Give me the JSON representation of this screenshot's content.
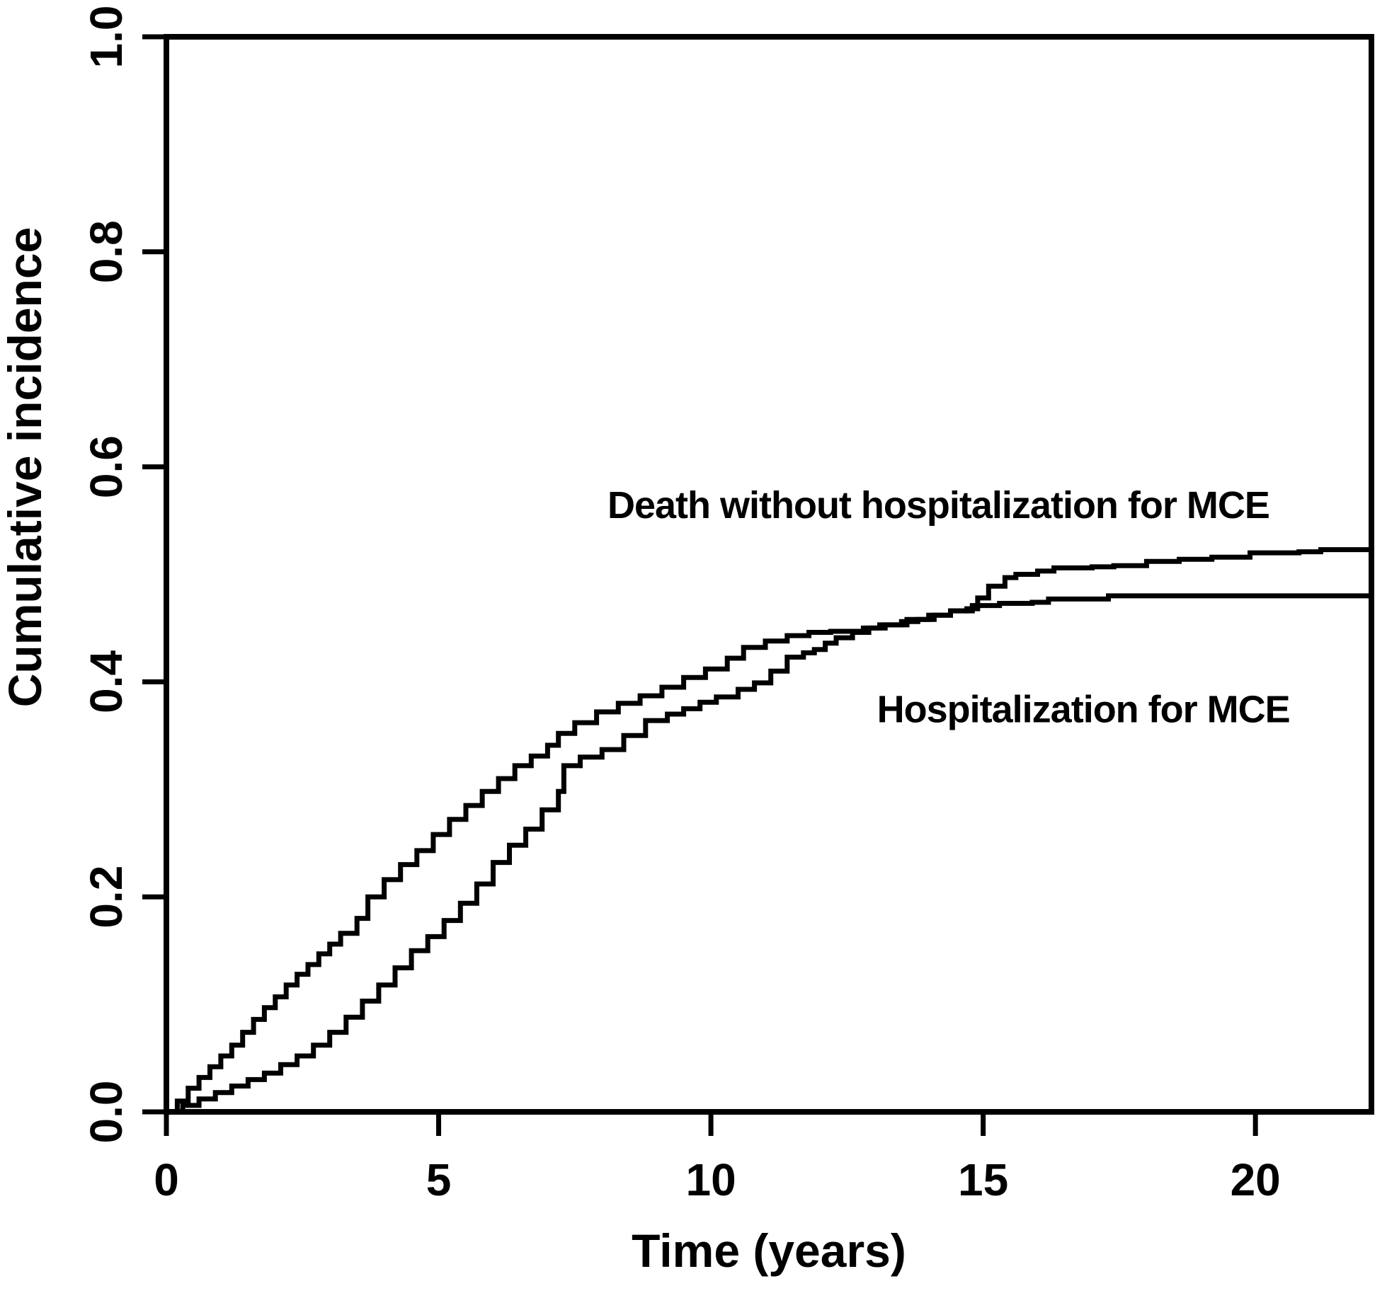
{
  "figure": {
    "background": "#ffffff",
    "ink_color": "#000000"
  },
  "chart_data": {
    "type": "line",
    "subtype": "cumulative-incidence-step-curves",
    "title": "",
    "xlabel": "Time (years)",
    "ylabel": "Cumulative incidence",
    "xlim": [
      0,
      22.13
    ],
    "ylim": [
      0,
      1.0
    ],
    "x_ticks": [
      0,
      5,
      10,
      15,
      20
    ],
    "x_tick_labels": [
      "0",
      "5",
      "10",
      "15",
      "20"
    ],
    "y_ticks": [
      0.0,
      0.2,
      0.4,
      0.6,
      0.8,
      1.0
    ],
    "y_tick_labels": [
      "0.0",
      "0.2",
      "0.4",
      "0.6",
      "0.8",
      "1.0"
    ],
    "grid": false,
    "frame": "full-box",
    "legend_position": "inline-annotations",
    "line_color": "#000000",
    "annotations": [
      {
        "name": "death-curve-label",
        "text": "Death without hospitalization for MCE",
        "x": 8.1,
        "y": 0.565
      },
      {
        "name": "hospitalization-curve-label",
        "text": "Hospitalization for MCE",
        "x": 13.05,
        "y": 0.375
      }
    ],
    "series": [
      {
        "name": "Death without hospitalization for MCE",
        "points": [
          [
            0,
            0
          ],
          [
            0.3,
            0.006
          ],
          [
            0.6,
            0.012
          ],
          [
            0.9,
            0.018
          ],
          [
            1.2,
            0.024
          ],
          [
            1.5,
            0.03
          ],
          [
            1.8,
            0.036
          ],
          [
            2.1,
            0.044
          ],
          [
            2.4,
            0.052
          ],
          [
            2.7,
            0.062
          ],
          [
            3.0,
            0.074
          ],
          [
            3.3,
            0.088
          ],
          [
            3.6,
            0.103
          ],
          [
            3.9,
            0.118
          ],
          [
            4.2,
            0.134
          ],
          [
            4.5,
            0.15
          ],
          [
            4.8,
            0.163
          ],
          [
            5.1,
            0.178
          ],
          [
            5.4,
            0.194
          ],
          [
            5.7,
            0.212
          ],
          [
            6.0,
            0.232
          ],
          [
            6.3,
            0.248
          ],
          [
            6.6,
            0.263
          ],
          [
            6.9,
            0.281
          ],
          [
            7.2,
            0.298
          ],
          [
            7.3,
            0.322
          ],
          [
            7.6,
            0.33
          ],
          [
            8.0,
            0.337
          ],
          [
            8.4,
            0.35
          ],
          [
            8.8,
            0.364
          ],
          [
            9.2,
            0.37
          ],
          [
            9.5,
            0.375
          ],
          [
            9.8,
            0.381
          ],
          [
            10.1,
            0.386
          ],
          [
            10.5,
            0.393
          ],
          [
            10.8,
            0.399
          ],
          [
            11.1,
            0.41
          ],
          [
            11.4,
            0.423
          ],
          [
            11.7,
            0.427
          ],
          [
            11.9,
            0.43
          ],
          [
            12.1,
            0.436
          ],
          [
            12.3,
            0.441
          ],
          [
            12.6,
            0.446
          ],
          [
            12.9,
            0.45
          ],
          [
            13.1,
            0.453
          ],
          [
            13.5,
            0.456
          ],
          [
            13.8,
            0.458
          ],
          [
            14.1,
            0.462
          ],
          [
            14.4,
            0.466
          ],
          [
            14.7,
            0.468
          ],
          [
            14.9,
            0.478
          ],
          [
            15.1,
            0.489
          ],
          [
            15.4,
            0.497
          ],
          [
            15.6,
            0.5
          ],
          [
            16.0,
            0.503
          ],
          [
            16.3,
            0.506
          ],
          [
            17.0,
            0.507
          ],
          [
            17.4,
            0.508
          ],
          [
            18.0,
            0.512
          ],
          [
            18.6,
            0.514
          ],
          [
            19.2,
            0.516
          ],
          [
            19.9,
            0.52
          ],
          [
            20.8,
            0.521
          ],
          [
            21.2,
            0.523
          ],
          [
            22.13,
            0.524
          ]
        ]
      },
      {
        "name": "Hospitalization for MCE",
        "points": [
          [
            0,
            0
          ],
          [
            0.2,
            0.01
          ],
          [
            0.4,
            0.022
          ],
          [
            0.6,
            0.032
          ],
          [
            0.8,
            0.042
          ],
          [
            1.0,
            0.052
          ],
          [
            1.2,
            0.062
          ],
          [
            1.4,
            0.074
          ],
          [
            1.6,
            0.086
          ],
          [
            1.8,
            0.097
          ],
          [
            2.0,
            0.107
          ],
          [
            2.2,
            0.118
          ],
          [
            2.4,
            0.128
          ],
          [
            2.6,
            0.137
          ],
          [
            2.8,
            0.147
          ],
          [
            3.0,
            0.156
          ],
          [
            3.2,
            0.166
          ],
          [
            3.5,
            0.18
          ],
          [
            3.7,
            0.2
          ],
          [
            4.0,
            0.216
          ],
          [
            4.3,
            0.23
          ],
          [
            4.6,
            0.243
          ],
          [
            4.9,
            0.258
          ],
          [
            5.2,
            0.272
          ],
          [
            5.5,
            0.285
          ],
          [
            5.8,
            0.298
          ],
          [
            6.1,
            0.31
          ],
          [
            6.4,
            0.322
          ],
          [
            6.7,
            0.331
          ],
          [
            7.0,
            0.341
          ],
          [
            7.2,
            0.352
          ],
          [
            7.5,
            0.362
          ],
          [
            7.9,
            0.372
          ],
          [
            8.3,
            0.38
          ],
          [
            8.7,
            0.387
          ],
          [
            9.1,
            0.395
          ],
          [
            9.5,
            0.404
          ],
          [
            9.9,
            0.412
          ],
          [
            10.3,
            0.422
          ],
          [
            10.6,
            0.432
          ],
          [
            11.0,
            0.438
          ],
          [
            11.4,
            0.443
          ],
          [
            11.8,
            0.446
          ],
          [
            12.2,
            0.447
          ],
          [
            12.8,
            0.45
          ],
          [
            13.2,
            0.453
          ],
          [
            13.6,
            0.458
          ],
          [
            14.0,
            0.462
          ],
          [
            14.4,
            0.466
          ],
          [
            14.8,
            0.471
          ],
          [
            15.3,
            0.473
          ],
          [
            15.9,
            0.474
          ],
          [
            16.2,
            0.477
          ],
          [
            17.3,
            0.48
          ],
          [
            22.13,
            0.48
          ]
        ]
      }
    ]
  }
}
